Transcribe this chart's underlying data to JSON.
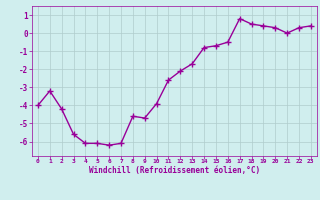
{
  "x": [
    0,
    1,
    2,
    3,
    4,
    5,
    6,
    7,
    8,
    9,
    10,
    11,
    12,
    13,
    14,
    15,
    16,
    17,
    18,
    19,
    20,
    21,
    22,
    23
  ],
  "y": [
    -4.0,
    -3.2,
    -4.2,
    -5.6,
    -6.1,
    -6.1,
    -6.2,
    -6.1,
    -4.6,
    -4.7,
    -3.9,
    -2.6,
    -2.1,
    -1.7,
    -0.8,
    -0.7,
    -0.5,
    0.8,
    0.5,
    0.4,
    0.3,
    0.0,
    0.3,
    0.4
  ],
  "line_color": "#990099",
  "marker": "+",
  "bg_color": "#d0eeee",
  "grid_color": "#b0cccc",
  "xlabel": "Windchill (Refroidissement éolien,°C)",
  "xlabel_color": "#990099",
  "tick_color": "#990099",
  "ylim": [
    -6.8,
    1.5
  ],
  "xlim": [
    -0.5,
    23.5
  ],
  "yticks": [
    -6,
    -5,
    -4,
    -3,
    -2,
    -1,
    0,
    1
  ],
  "xticks": [
    0,
    1,
    2,
    3,
    4,
    5,
    6,
    7,
    8,
    9,
    10,
    11,
    12,
    13,
    14,
    15,
    16,
    17,
    18,
    19,
    20,
    21,
    22,
    23
  ],
  "linewidth": 1.0,
  "markersize": 4,
  "markeredgewidth": 1.0
}
